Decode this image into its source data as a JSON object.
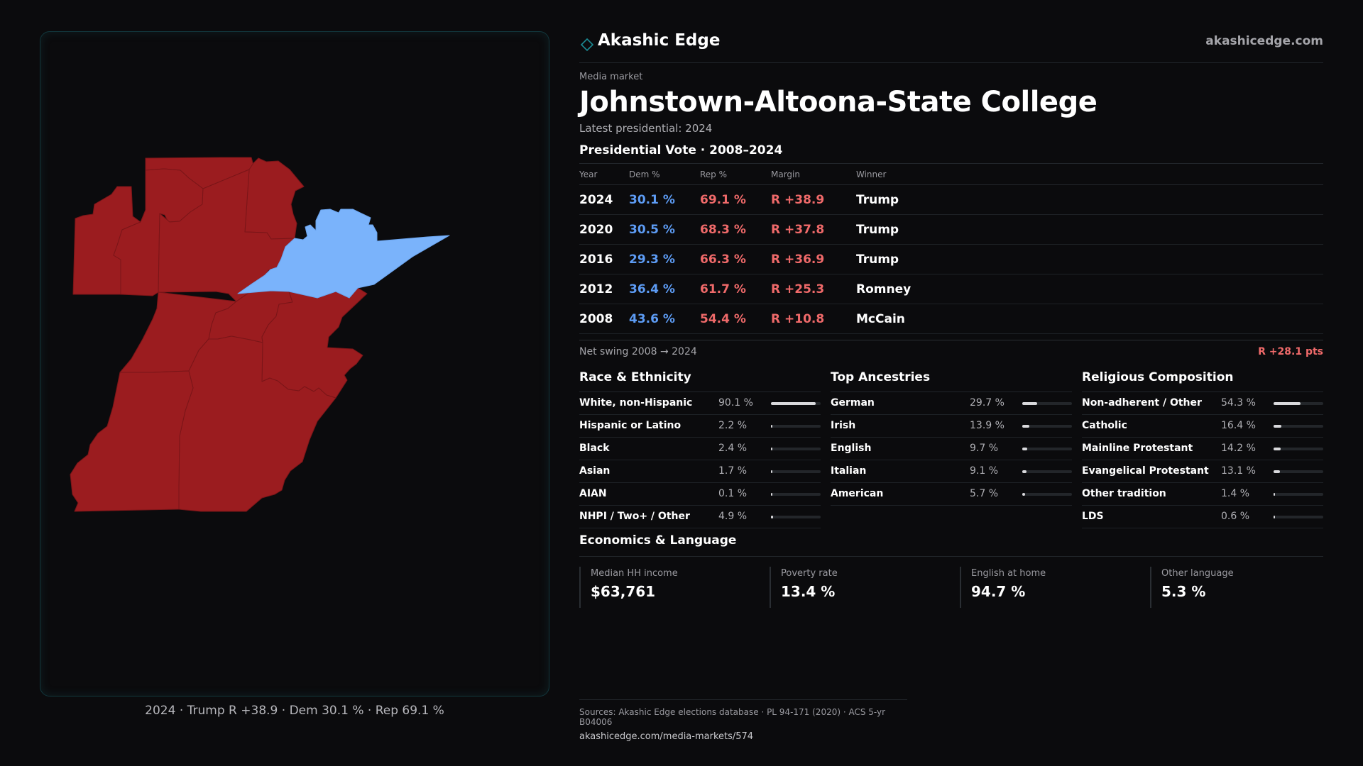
{
  "brand": {
    "name": "Akashic Edge",
    "url": "akashicedge.com"
  },
  "header": {
    "eyebrow": "Media market",
    "title": "Johnstown-Altoona-State College",
    "subtitle": "Latest presidential: 2024"
  },
  "vote": {
    "title": "Presidential Vote · 2008–2024",
    "columns": [
      "Year",
      "Dem %",
      "Rep %",
      "Margin",
      "Winner"
    ],
    "rows": [
      {
        "year": "2024",
        "dem": "30.1 %",
        "rep": "69.1 %",
        "margin": "R +38.9",
        "winner": "Trump"
      },
      {
        "year": "2020",
        "dem": "30.5 %",
        "rep": "68.3 %",
        "margin": "R +37.8",
        "winner": "Trump"
      },
      {
        "year": "2016",
        "dem": "29.3 %",
        "rep": "66.3 %",
        "margin": "R +36.9",
        "winner": "Trump"
      },
      {
        "year": "2012",
        "dem": "36.4 %",
        "rep": "61.7 %",
        "margin": "R +25.3",
        "winner": "Romney"
      },
      {
        "year": "2008",
        "dem": "43.6 %",
        "rep": "54.4 %",
        "margin": "R +10.8",
        "winner": "McCain"
      }
    ],
    "swing_label": "Net swing 2008 → 2024",
    "swing_value": "R +28.1 pts"
  },
  "race": {
    "title": "Race & Ethnicity",
    "items": [
      {
        "label": "White, non-Hispanic",
        "pct": "90.1 %",
        "value": 90.1
      },
      {
        "label": "Hispanic or Latino",
        "pct": "2.2 %",
        "value": 2.2
      },
      {
        "label": "Black",
        "pct": "2.4 %",
        "value": 2.4
      },
      {
        "label": "Asian",
        "pct": "1.7 %",
        "value": 1.7
      },
      {
        "label": "AIAN",
        "pct": "0.1 %",
        "value": 0.1
      },
      {
        "label": "NHPI / Two+ / Other",
        "pct": "4.9 %",
        "value": 4.9
      }
    ]
  },
  "ancestry": {
    "title": "Top Ancestries",
    "items": [
      {
        "label": "German",
        "pct": "29.7 %",
        "value": 29.7
      },
      {
        "label": "Irish",
        "pct": "13.9 %",
        "value": 13.9
      },
      {
        "label": "English",
        "pct": "9.7 %",
        "value": 9.7
      },
      {
        "label": "Italian",
        "pct": "9.1 %",
        "value": 9.1
      },
      {
        "label": "American",
        "pct": "5.7 %",
        "value": 5.7
      }
    ]
  },
  "religion": {
    "title": "Religious Composition",
    "items": [
      {
        "label": "Non-adherent / Other",
        "pct": "54.3 %",
        "value": 54.3
      },
      {
        "label": "Catholic",
        "pct": "16.4 %",
        "value": 16.4
      },
      {
        "label": "Mainline Protestant",
        "pct": "14.2 %",
        "value": 14.2
      },
      {
        "label": "Evangelical Protestant",
        "pct": "13.1 %",
        "value": 13.1
      },
      {
        "label": "Other tradition",
        "pct": "1.4 %",
        "value": 1.4
      },
      {
        "label": "LDS",
        "pct": "0.6 %",
        "value": 0.6
      }
    ]
  },
  "economics": {
    "title": "Economics & Language",
    "items": [
      {
        "label": "Median HH income",
        "value": "$63,761"
      },
      {
        "label": "Poverty rate",
        "value": "13.4 %"
      },
      {
        "label": "English at home",
        "value": "94.7 %"
      },
      {
        "label": "Other language",
        "value": "5.3 %"
      }
    ]
  },
  "map": {
    "caption": "2024 · Trump R +38.9 · Dem 30.1 % · Rep 69.1 %",
    "rep_color": "#9b1c1f",
    "dem_color": "#7ab3fb",
    "regions": [
      {
        "name": "northwest-county",
        "party": "rep"
      },
      {
        "name": "north-county",
        "party": "rep"
      },
      {
        "name": "north-central-county",
        "party": "rep"
      },
      {
        "name": "central-county",
        "party": "rep"
      },
      {
        "name": "centre-county",
        "party": "dem"
      },
      {
        "name": "middle-west-county",
        "party": "rep"
      },
      {
        "name": "middle-center-county",
        "party": "rep"
      },
      {
        "name": "middle-east-county",
        "party": "rep"
      },
      {
        "name": "southwest-county",
        "party": "rep"
      },
      {
        "name": "south-central-county",
        "party": "rep"
      }
    ]
  },
  "sources": {
    "text": "Sources: Akashic Edge elections database · PL 94-171 (2020) · ACS 5-yr B04006",
    "url": "akashicedge.com/media-markets/574"
  },
  "colors": {
    "accent_teal": "#1b8a93",
    "dem": "#5d9cf5",
    "rep": "#f06a6a"
  }
}
